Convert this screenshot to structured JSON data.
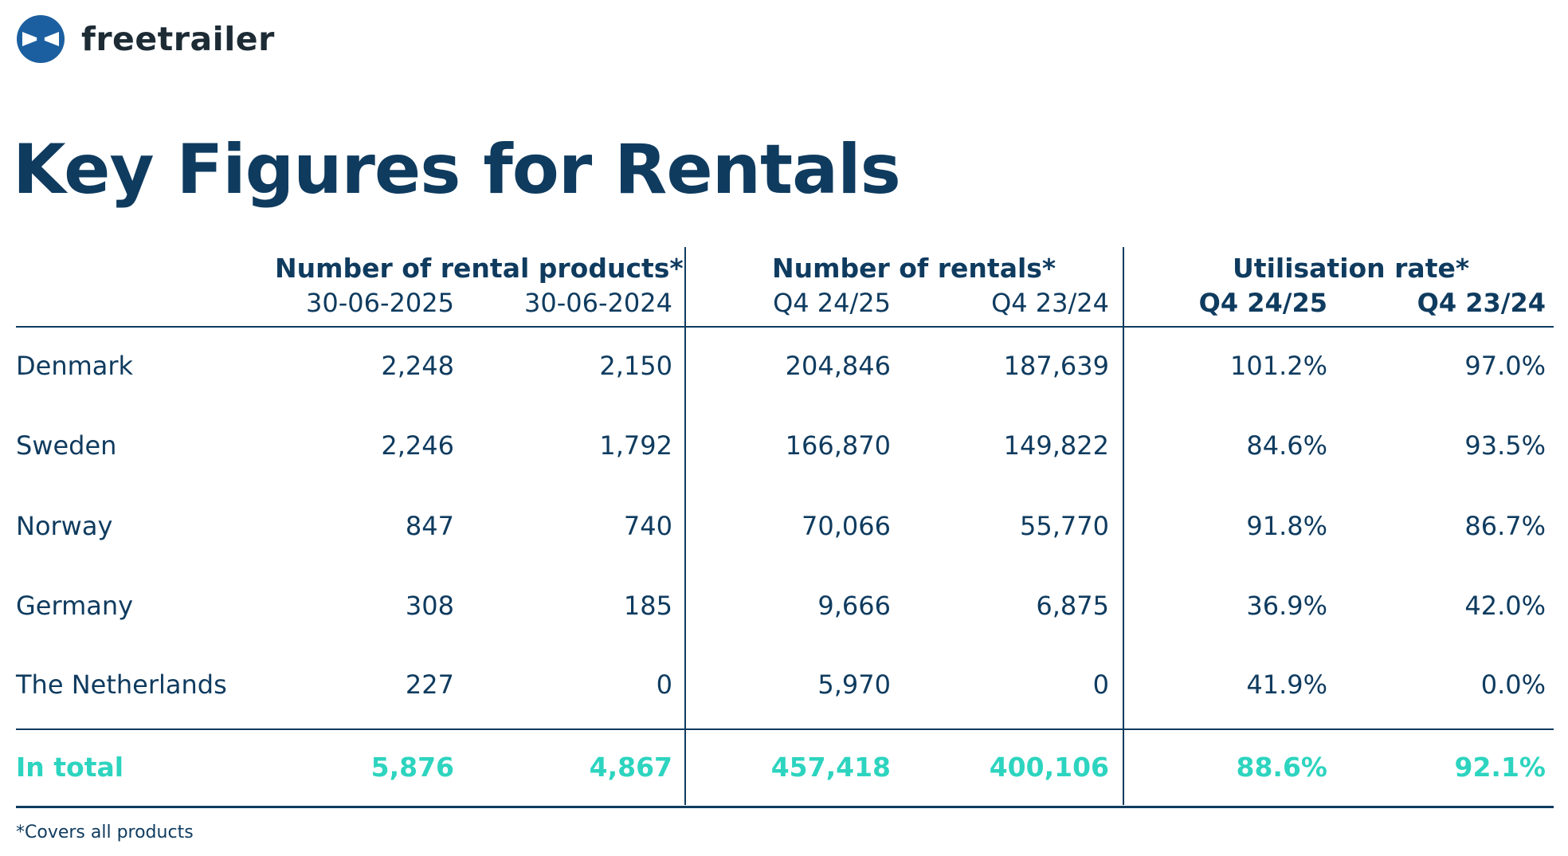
{
  "brand": {
    "name": "freetrailer",
    "logo_icon": "freetrailer-logo-icon"
  },
  "title": "Key Figures for Rentals",
  "colors": {
    "navy": "#0f3b5f",
    "teal": "#2dd4bf",
    "logo_blue": "#1b5fa0"
  },
  "groups": [
    {
      "title": "Number of rental products*",
      "sub": [
        "30-06-2025",
        "30-06-2024"
      ]
    },
    {
      "title": "Number of rentals*",
      "sub": [
        "Q4 24/25",
        "Q4 23/24"
      ]
    },
    {
      "title": "Utilisation rate*",
      "sub": [
        "Q4 24/25",
        "Q4 23/24"
      ]
    }
  ],
  "rows": [
    {
      "country": "Denmark",
      "values": [
        "2,248",
        "2,150",
        "204,846",
        "187,639",
        "101.2%",
        "97.0%"
      ]
    },
    {
      "country": "Sweden",
      "values": [
        "2,246",
        "1,792",
        "166,870",
        "149,822",
        "84.6%",
        "93.5%"
      ]
    },
    {
      "country": "Norway",
      "values": [
        "847",
        "740",
        "70,066",
        "55,770",
        "91.8%",
        "86.7%"
      ]
    },
    {
      "country": "Germany",
      "values": [
        "308",
        "185",
        "9,666",
        "6,875",
        "36.9%",
        "42.0%"
      ]
    },
    {
      "country": "The Netherlands",
      "values": [
        "227",
        "0",
        "5,970",
        "0",
        "41.9%",
        "0.0%"
      ]
    }
  ],
  "total": {
    "label": "In total",
    "values": [
      "5,876",
      "4,867",
      "457,418",
      "400,106",
      "88.6%",
      "92.1%"
    ]
  },
  "footnote": "*Covers all products"
}
